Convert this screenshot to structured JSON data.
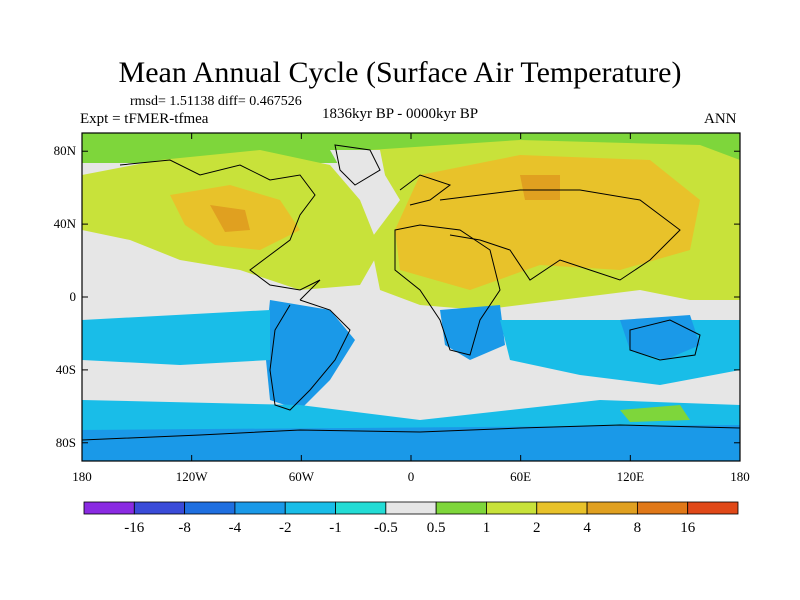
{
  "title": "Mean Annual Cycle (Surface Air Temperature)",
  "stats": "rmsd= 1.51138 diff= 0.467526",
  "experiment": "Expt = tFMER-tfmea",
  "period": "1836kyr BP - 0000kyr BP",
  "season": "ANN",
  "map": {
    "lat_ticks": [
      "80N",
      "40N",
      "0",
      "40S",
      "80S"
    ],
    "lon_ticks": [
      "180",
      "120W",
      "60W",
      "0",
      "60E",
      "120E",
      "180"
    ],
    "lat_range": [
      -90,
      90
    ],
    "lon_range": [
      -180,
      180
    ]
  },
  "colorbar": {
    "colors": [
      "#8a2be2",
      "#3a4bd8",
      "#1f6fe0",
      "#1a99e8",
      "#19bde8",
      "#23dcd5",
      "#e6e6e6",
      "#7ed63b",
      "#c8e23a",
      "#e8c22a",
      "#e0a020",
      "#e07818",
      "#e04818"
    ],
    "labels": [
      "-16",
      "-8",
      "-4",
      "-2",
      "-1",
      "-0.5",
      "0.5",
      "1",
      "2",
      "4",
      "8",
      "16"
    ]
  }
}
